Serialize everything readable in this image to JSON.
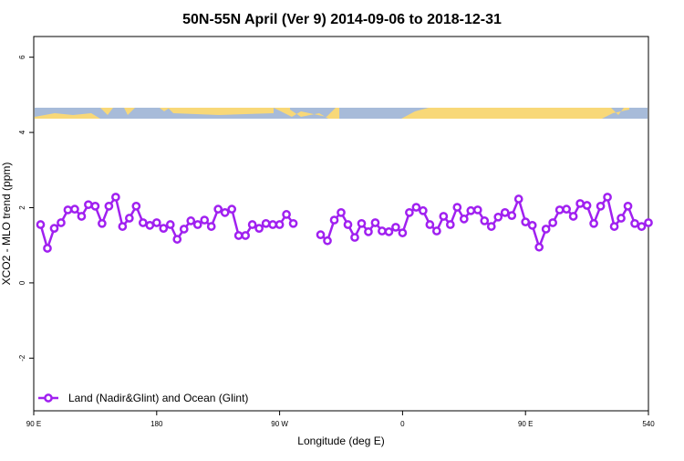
{
  "chart_data": {
    "type": "line",
    "title": "50N-55N April (Ver 9)   2014-09-06 to 2018-12-31",
    "x_label": "Longitude (deg E)",
    "y_label": "XCO2 - MLO trend (ppm)",
    "x": [
      95,
      100,
      105,
      110,
      115,
      120,
      125,
      130,
      135,
      140,
      145,
      150,
      155,
      160,
      165,
      170,
      175,
      180,
      185,
      190,
      195,
      200,
      205,
      210,
      215,
      220,
      225,
      230,
      235,
      240,
      245,
      250,
      255,
      260,
      265,
      270,
      275,
      280,
      285,
      290,
      295,
      300,
      305,
      310,
      315,
      320,
      325,
      330,
      335,
      340,
      345,
      350,
      355,
      360,
      365,
      370,
      375,
      380,
      385,
      390,
      395,
      400,
      405,
      410,
      415,
      420,
      425,
      430,
      435,
      440,
      445,
      450,
      455,
      460,
      465,
      470,
      475,
      480,
      485,
      490,
      495,
      500,
      505,
      510,
      515,
      520,
      525,
      530,
      535,
      540
    ],
    "series": [
      {
        "name": "Land (Nadir&Glint) and Ocean (Glint)",
        "color": "#a020f0",
        "values": [
          1.55,
          0.92,
          1.45,
          1.6,
          1.94,
          1.96,
          1.77,
          2.08,
          2.04,
          1.58,
          2.04,
          2.28,
          1.5,
          1.72,
          2.04,
          1.6,
          1.53,
          1.6,
          1.45,
          1.55,
          1.16,
          1.43,
          1.65,
          1.55,
          1.67,
          1.5,
          1.96,
          1.87,
          1.96,
          1.26,
          1.26,
          1.55,
          1.45,
          1.58,
          1.55,
          1.55,
          1.82,
          1.58,
          null,
          null,
          null,
          1.28,
          1.12,
          1.67,
          1.87,
          1.55,
          1.21,
          1.58,
          1.36,
          1.6,
          1.38,
          1.36,
          1.48,
          1.33,
          1.87,
          2.01,
          1.92,
          1.55,
          1.38,
          1.77,
          1.55,
          2.01,
          1.7,
          1.92,
          1.94,
          1.65,
          1.5,
          1.75,
          1.87,
          1.79,
          2.23,
          1.62,
          1.53,
          0.95,
          1.43,
          1.6,
          1.94,
          1.96,
          1.77,
          2.11,
          2.06,
          1.58,
          2.04,
          2.28,
          1.5,
          1.72,
          2.04,
          1.58,
          1.5,
          1.6
        ]
      }
    ],
    "xlim": [
      90,
      540
    ],
    "xticks": [
      {
        "value": 90,
        "label": "90 E"
      },
      180,
      {
        "value": 270,
        "label": "90 W"
      },
      {
        "value": 360,
        "label": "0"
      },
      {
        "value": 450,
        "label": "90 E"
      },
      540
    ],
    "ylim": [
      -3.4,
      6.55
    ],
    "yticks": [
      -2,
      0,
      2,
      4,
      6
    ],
    "legend": "bottom-left"
  }
}
